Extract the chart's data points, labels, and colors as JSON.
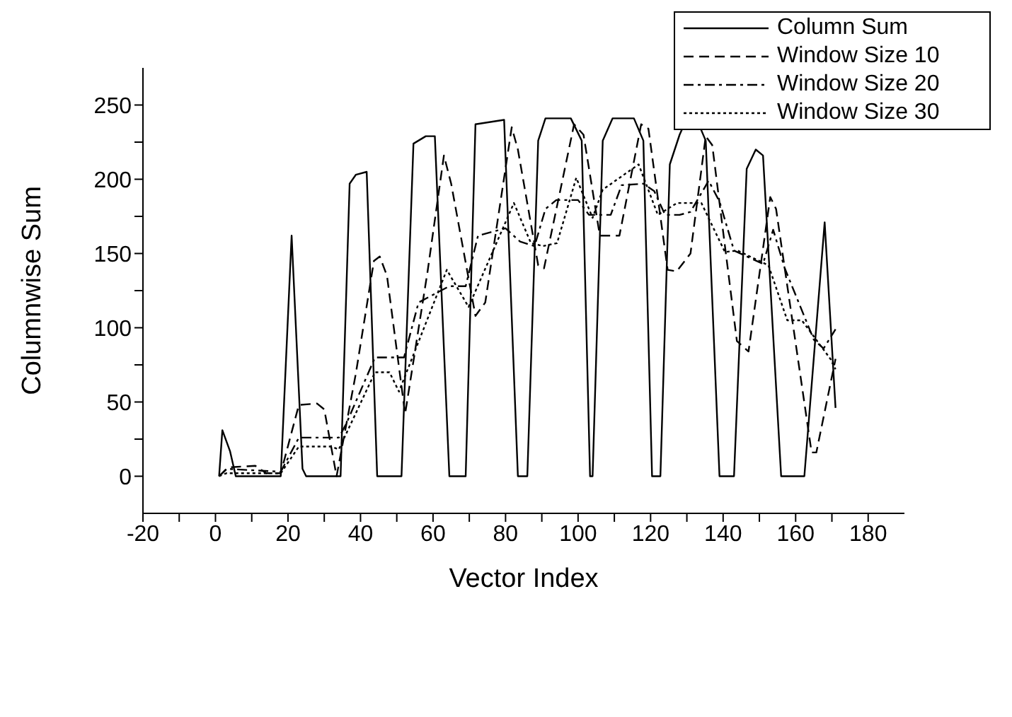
{
  "chart_data": {
    "type": "line",
    "xlabel": "Vector Index",
    "ylabel": "Columnwise Sum",
    "xlim": [
      -20,
      190
    ],
    "ylim": [
      -25,
      275
    ],
    "xticks": [
      -20,
      {
        "value": -10,
        "label": null
      },
      0,
      {
        "value": 10,
        "label": null
      },
      20,
      {
        "value": 30,
        "label": null
      },
      40,
      {
        "value": 50,
        "label": null
      },
      60,
      {
        "value": 70,
        "label": null
      },
      80,
      {
        "value": 90,
        "label": null
      },
      100,
      {
        "value": 110,
        "label": null
      },
      120,
      {
        "value": 130,
        "label": null
      },
      140,
      {
        "value": 150,
        "label": null
      },
      160,
      {
        "value": 170,
        "label": null
      },
      180
    ],
    "yticks": [
      0,
      {
        "value": 25,
        "label": null
      },
      50,
      {
        "value": 75,
        "label": null
      },
      100,
      {
        "value": 125,
        "label": null
      },
      150,
      {
        "value": 175,
        "label": null
      },
      200,
      {
        "value": 225,
        "label": null
      },
      250
    ],
    "grid": false,
    "legend": "top right",
    "marker": "none",
    "series": [
      {
        "name": "Column Sum",
        "color": "#000000",
        "line_style": "solid",
        "x": [
          1,
          1.9,
          4,
          5.6,
          18,
          21,
          24,
          25,
          34.5,
          37,
          38.7,
          41.7,
          44.6,
          51.3,
          54.6,
          58,
          60.5,
          64.5,
          69,
          71.7,
          79.6,
          83.4,
          86,
          89,
          91,
          98,
          101,
          103.3,
          104,
          106.8,
          109.5,
          115.4,
          118,
          120.4,
          122.7,
          125.3,
          128,
          130,
          132.6,
          135.2,
          139,
          143,
          146.5,
          149,
          151,
          156,
          162.4,
          168,
          171
        ],
        "values": [
          0,
          31,
          17,
          0,
          0,
          162,
          5,
          0,
          0,
          197,
          203,
          205,
          0,
          0,
          224,
          229,
          229,
          0,
          0,
          237,
          240,
          0,
          0,
          226,
          241,
          241,
          226,
          0,
          0,
          226,
          241,
          241,
          226,
          0,
          0,
          210,
          230,
          241,
          241,
          226,
          0,
          0,
          207,
          220,
          216,
          0,
          0,
          171,
          46
        ]
      },
      {
        "name": "Window Size 10",
        "color": "#000000",
        "line_style": "dashed",
        "x": [
          1,
          3.6,
          11,
          14,
          18,
          23,
          28,
          30,
          33.4,
          38.7,
          43.7,
          45.3,
          47.3,
          52.3,
          58.5,
          63,
          65,
          71.7,
          74.4,
          81.7,
          83.4,
          89,
          90.6,
          98.9,
          101.5,
          106,
          111.4,
          117.4,
          119.4,
          124.7,
          127.2,
          131,
          135.2,
          137,
          143.8,
          147,
          153,
          154.6,
          164.4,
          165.7,
          171
        ],
        "values": [
          0,
          6,
          7,
          2,
          2,
          48,
          49,
          45,
          0,
          69,
          145,
          148,
          135,
          42,
          138,
          216,
          197,
          108,
          117,
          235,
          220,
          142,
          140,
          237,
          230,
          162,
          162,
          237,
          234,
          139,
          138,
          150,
          229,
          223,
          91,
          84,
          188,
          180,
          16,
          16,
          79
        ]
      },
      {
        "name": "Window Size 20",
        "color": "#000000",
        "line_style": "dashdot",
        "x": [
          1,
          3,
          18,
          23,
          34,
          36,
          44,
          52,
          56,
          64.5,
          69,
          72.4,
          80,
          84,
          88,
          91,
          94,
          100,
          103,
          109,
          112,
          118,
          121,
          124,
          128,
          131,
          136,
          139,
          143,
          151,
          153.8,
          157,
          165,
          167.7,
          171
        ],
        "values": [
          0,
          5,
          3,
          26,
          26,
          35,
          80,
          80,
          117,
          128,
          128,
          162,
          167,
          158,
          155,
          180,
          186,
          186,
          176,
          176,
          196,
          197,
          192,
          176,
          176,
          178,
          199,
          185,
          152,
          143,
          166,
          140,
          92,
          86,
          99
        ]
      },
      {
        "name": "Window Size 30",
        "color": "#000000",
        "line_style": "dotted",
        "x": [
          1,
          3,
          18,
          23,
          32,
          34,
          44,
          48,
          50.6,
          63.8,
          69.8,
          82.3,
          87,
          90.3,
          94.2,
          99.5,
          104,
          106.8,
          116.7,
          122,
          127.3,
          134,
          140.5,
          144,
          152.5,
          157.7,
          161.7,
          169.6,
          171
        ],
        "values": [
          0,
          2,
          2,
          20,
          20,
          18,
          70,
          70,
          57,
          139,
          114,
          184,
          157,
          155,
          157,
          201,
          174,
          193,
          210,
          176,
          184,
          184,
          151,
          152,
          142,
          105,
          105,
          79,
          72
        ]
      }
    ]
  }
}
